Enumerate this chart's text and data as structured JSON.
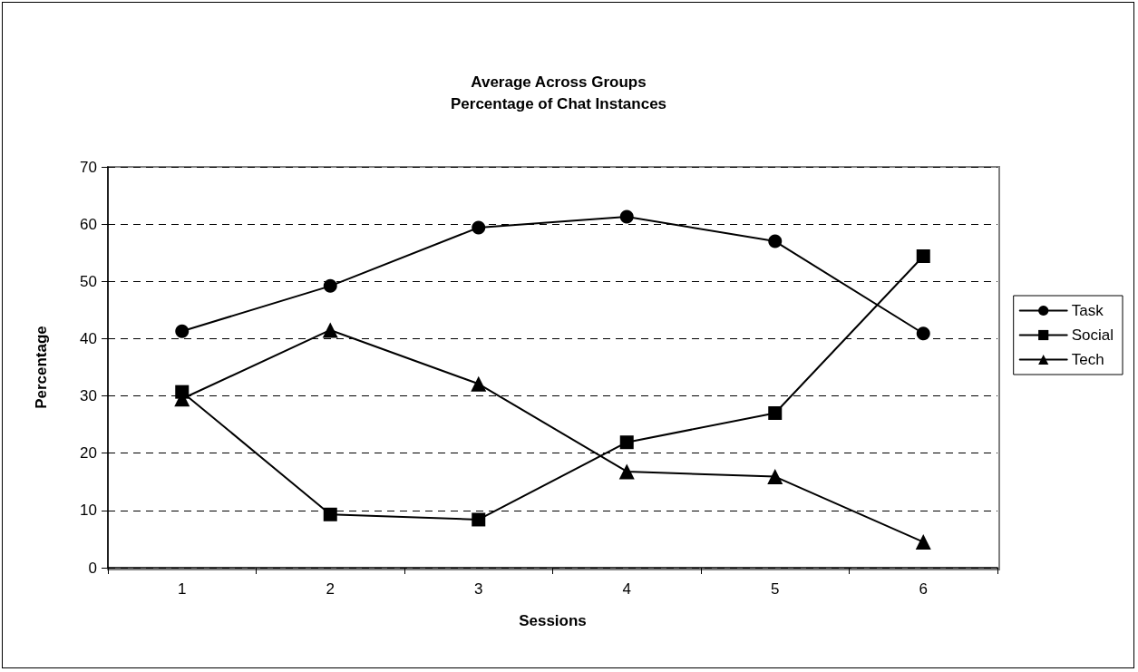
{
  "chart_data": {
    "type": "line",
    "title": "Average Across Groups\nPercentage of Chat Instances",
    "xlabel": "Sessions",
    "ylabel": "Percentage",
    "categories": [
      "1",
      "2",
      "3",
      "4",
      "5",
      "6"
    ],
    "series": [
      {
        "name": "Task",
        "color": "#000000",
        "marker": "circle",
        "values": [
          41.3,
          49.2,
          59.4,
          61.3,
          57.0,
          40.9
        ]
      },
      {
        "name": "Social",
        "color": "#000000",
        "marker": "square",
        "values": [
          30.7,
          9.3,
          8.4,
          21.9,
          27.0,
          54.4
        ]
      },
      {
        "name": "Tech",
        "color": "#000000",
        "marker": "triangle",
        "values": [
          29.5,
          41.5,
          32.1,
          16.8,
          15.9,
          4.5
        ]
      }
    ],
    "ylim": [
      0,
      70
    ],
    "yticks": [
      0,
      10,
      20,
      30,
      40,
      50,
      60,
      70
    ],
    "grid": "y",
    "legend": "right",
    "line_style": "solid"
  }
}
